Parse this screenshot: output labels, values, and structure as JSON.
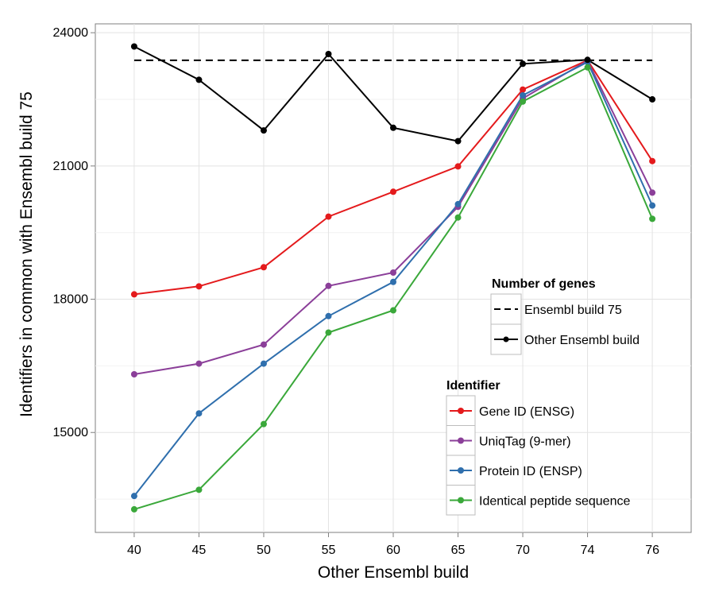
{
  "chart_data": {
    "type": "line",
    "title": "",
    "xlabel": "Other Ensembl build",
    "ylabel": "Identifiers in common with Ensembl build 75",
    "categories": [
      "40",
      "45",
      "50",
      "55",
      "60",
      "65",
      "70",
      "74",
      "76"
    ],
    "ylim": [
      12750,
      24200
    ],
    "yticks": [
      15000,
      18000,
      21000,
      24000
    ],
    "grid": true,
    "legend_genes": {
      "title": "Number of genes",
      "entries": [
        "Ensembl build 75",
        "Other Ensembl build"
      ],
      "placement": "right"
    },
    "legend_identifier": {
      "title": "Identifier",
      "placement": "bottom-right"
    },
    "reference_line": {
      "name": "Ensembl build 75",
      "value": 23380,
      "style": "dashed",
      "color": "#000000"
    },
    "genes_series": {
      "name": "Other Ensembl build",
      "color": "#000000",
      "values": [
        23690,
        22940,
        21800,
        23520,
        21860,
        21560,
        23300,
        23390,
        22500
      ]
    },
    "series": [
      {
        "name": "Gene ID (ENSG)",
        "color": "#e41a1c",
        "values": [
          18110,
          18290,
          18720,
          19860,
          20420,
          20990,
          22720,
          23380,
          21110
        ]
      },
      {
        "name": "UniqTag (9-mer)",
        "color": "#8b3f99",
        "values": [
          16310,
          16550,
          16980,
          18300,
          18600,
          20080,
          22520,
          23370,
          20400
        ]
      },
      {
        "name": "Protein ID (ENSP)",
        "color": "#2f6fad",
        "values": [
          13570,
          15430,
          16550,
          17620,
          18390,
          20140,
          22590,
          23340,
          20110
        ]
      },
      {
        "name": "Identical peptide sequence",
        "color": "#3aa83a",
        "values": [
          13270,
          13710,
          15190,
          17250,
          17750,
          19840,
          22450,
          23220,
          19810
        ]
      }
    ]
  }
}
